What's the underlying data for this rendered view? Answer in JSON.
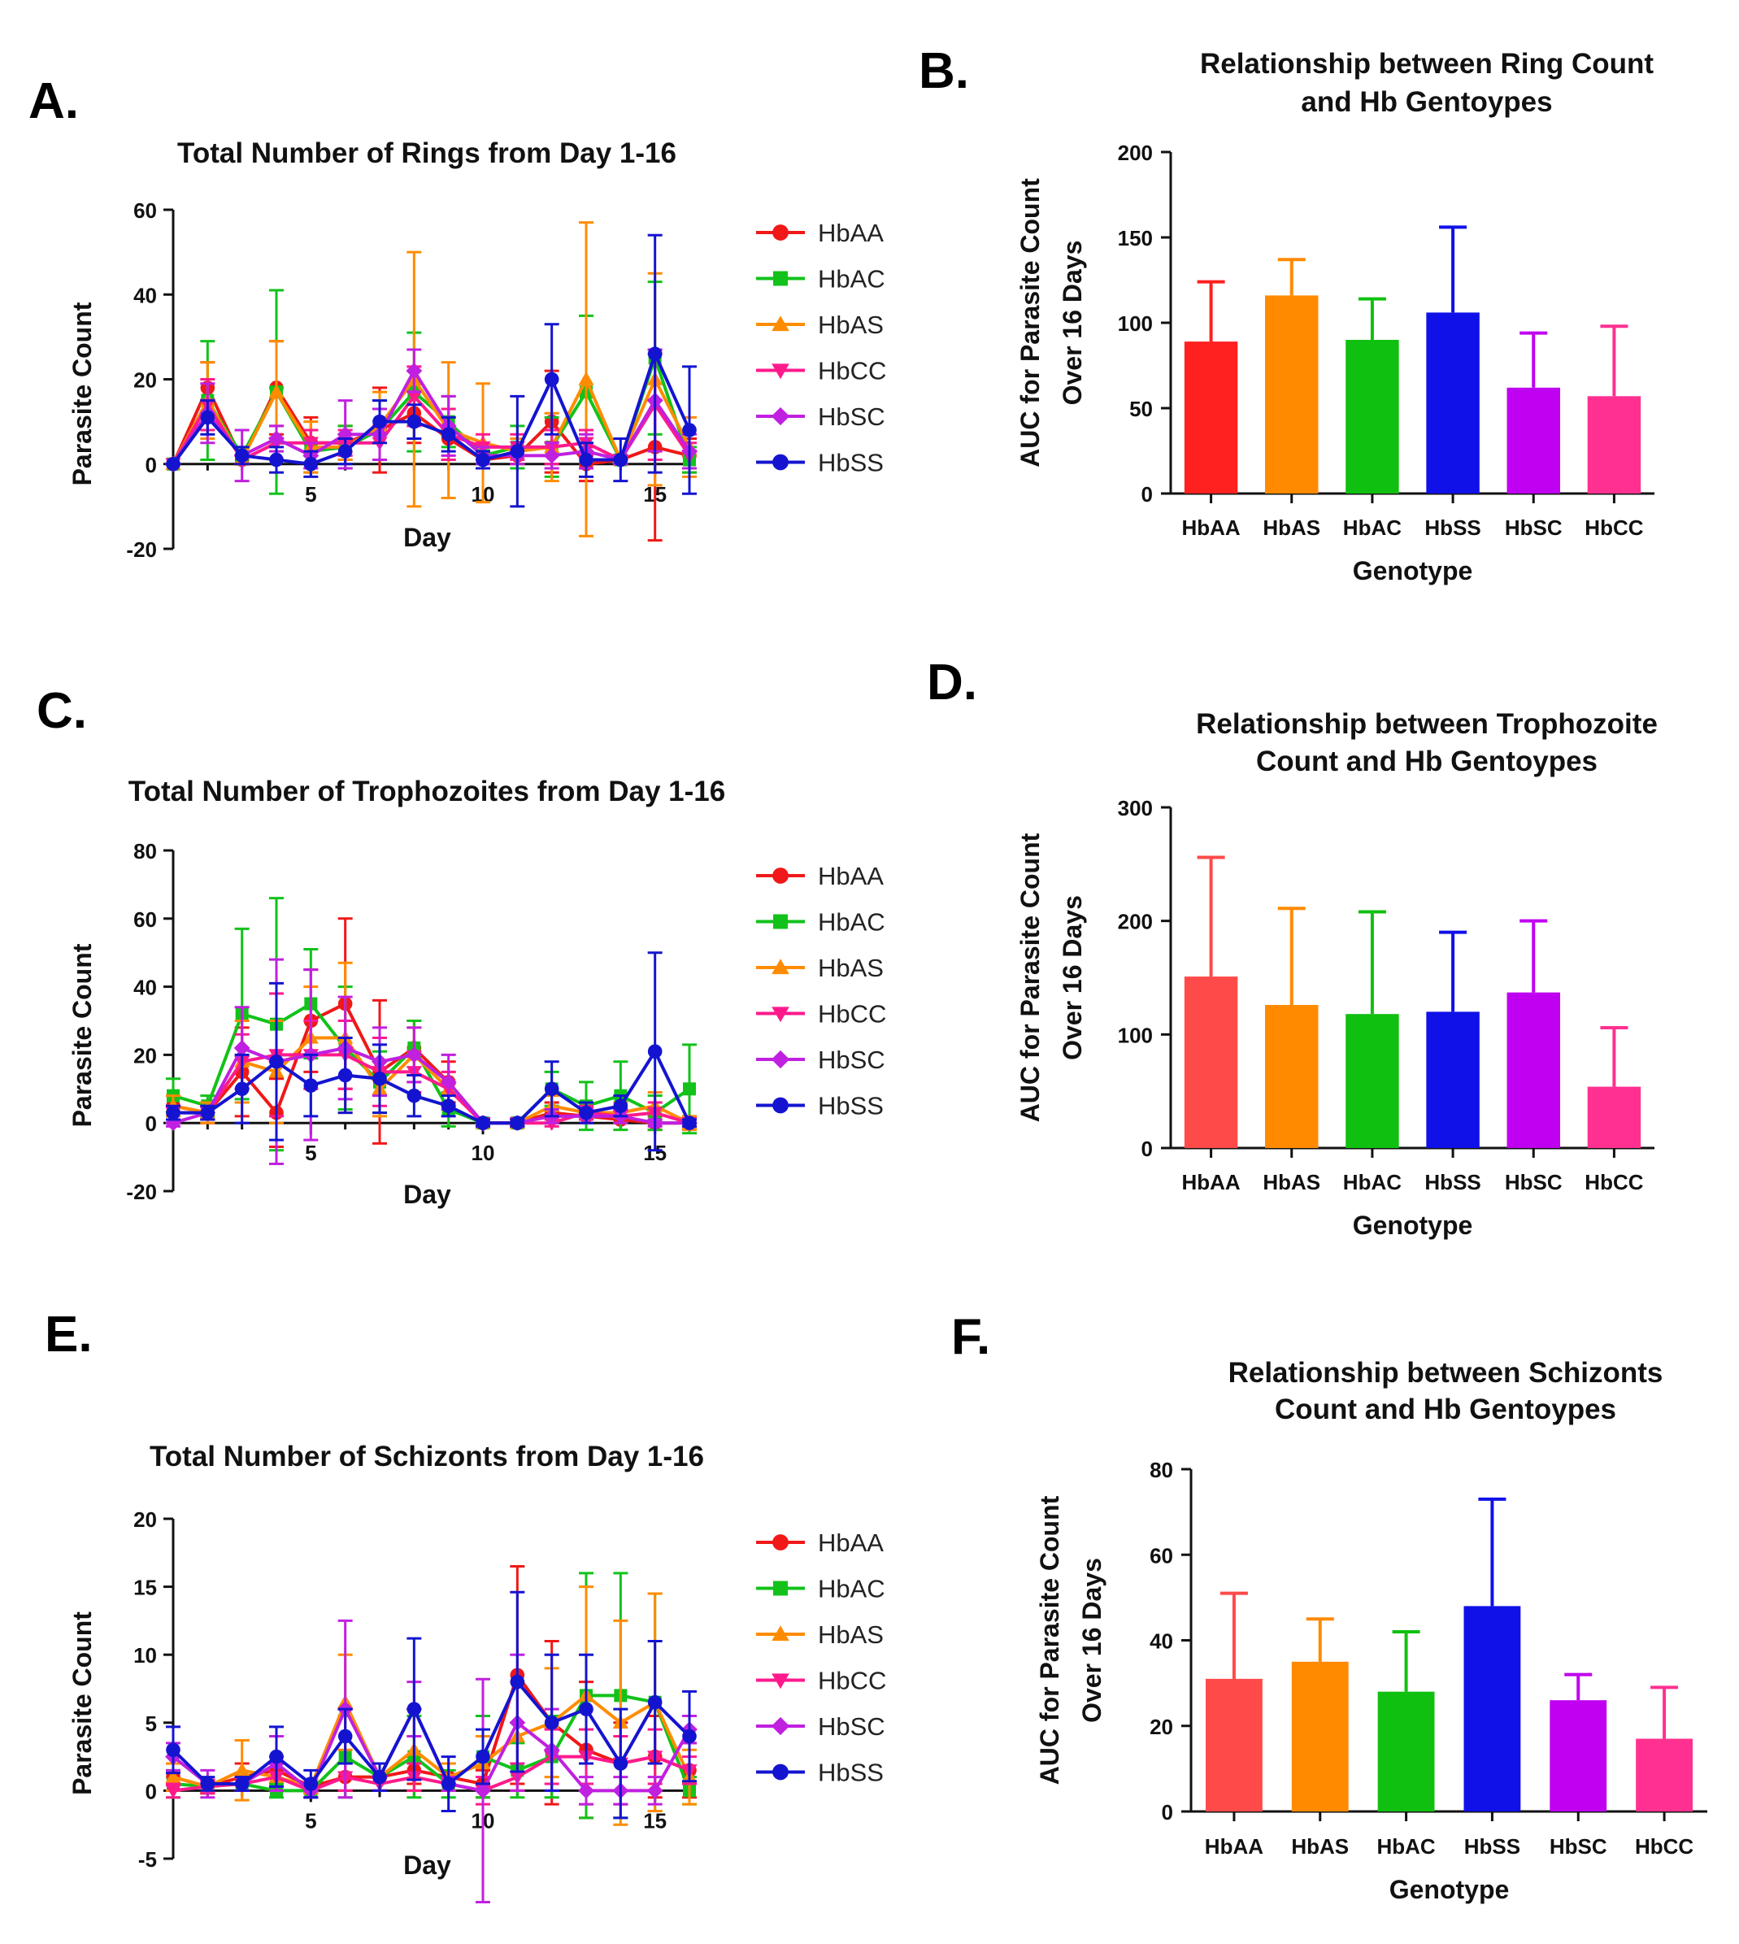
{
  "line_days": [
    1,
    2,
    3,
    4,
    5,
    6,
    7,
    8,
    9,
    10,
    11,
    12,
    13,
    14,
    15,
    16
  ],
  "bar_categories": [
    "HbAA",
    "HbAS",
    "HbAC",
    "HbSS",
    "HbSC",
    "HbCC"
  ],
  "colors": {
    "HbAA": "#f01818",
    "HbAC": "#12c21a",
    "HbAS": "#ff8c00",
    "HbCC": "#ff1a8c",
    "HbSC": "#c020e0",
    "HbSS": "#1414d0",
    "bar": {
      "HbAA": "#ff2020",
      "HbAS": "#ff8a00",
      "HbAC": "#10c010",
      "HbSS": "#1010e8",
      "HbSC": "#c000f0",
      "HbCC": "#ff3090"
    },
    "bar_light": {
      "HbAA": "#ff4a4a",
      "HbAS": "#ff8a00",
      "HbAC": "#10c010",
      "HbSS": "#1010e8",
      "HbSC": "#c000f0",
      "HbCC": "#ff3090"
    }
  },
  "chart_data": [
    {
      "panel": "A.",
      "type": "line",
      "title": "Total Number of Rings from  Day 1-16",
      "xlabel": "Day",
      "ylabel": "Parasite Count",
      "xticks": [
        5,
        10,
        15
      ],
      "yticks": [
        -20,
        0,
        20,
        40,
        60
      ],
      "xlim": [
        1,
        16
      ],
      "ylim": [
        -20,
        60
      ],
      "series": [
        {
          "name": "HbAA",
          "values": [
            0,
            18,
            1,
            18,
            5,
            5,
            8,
            12,
            6,
            1,
            2,
            10,
            0,
            1,
            4,
            2
          ],
          "errors": [
            0,
            6,
            1,
            11,
            6,
            4,
            10,
            7,
            5,
            2,
            2,
            12,
            4,
            1,
            22,
            4
          ]
        },
        {
          "name": "HbAC",
          "values": [
            0,
            15,
            2,
            17,
            3,
            4,
            8,
            17,
            10,
            2,
            4,
            4,
            17,
            1,
            25,
            1
          ],
          "errors": [
            0,
            14,
            2,
            24,
            5,
            5,
            7,
            14,
            6,
            2,
            5,
            7,
            18,
            1,
            18,
            3
          ]
        },
        {
          "name": "HbAS",
          "values": [
            0,
            15,
            1,
            17,
            4,
            4,
            9,
            20,
            8,
            5,
            3,
            4,
            20,
            1,
            20,
            4
          ],
          "errors": [
            0,
            9,
            1,
            12,
            6,
            3,
            8,
            30,
            16,
            14,
            3,
            8,
            37,
            1,
            25,
            7
          ]
        },
        {
          "name": "HbCC",
          "values": [
            0,
            14,
            1,
            5,
            5,
            5,
            5,
            16,
            7,
            4,
            4,
            4,
            5,
            1,
            14,
            2
          ],
          "errors": [
            0,
            6,
            1,
            4,
            3,
            3,
            4,
            7,
            6,
            3,
            3,
            4,
            3,
            1,
            13,
            3
          ]
        },
        {
          "name": "HbSC",
          "values": [
            0,
            12,
            2,
            6,
            2,
            7,
            7,
            22,
            9,
            2,
            2,
            2,
            3,
            1,
            15,
            3
          ],
          "errors": [
            0,
            7,
            6,
            3,
            3,
            8,
            6,
            5,
            7,
            2,
            2,
            3,
            4,
            1,
            12,
            4
          ]
        },
        {
          "name": "HbSS",
          "values": [
            0,
            11,
            2,
            1,
            0,
            3,
            10,
            10,
            7,
            1,
            3,
            20,
            1,
            1,
            26,
            8
          ],
          "errors": [
            0,
            4,
            2,
            3,
            3,
            3,
            5,
            4,
            4,
            2,
            13,
            13,
            4,
            5,
            28,
            15
          ]
        }
      ]
    },
    {
      "panel": "B.",
      "type": "bar",
      "title": "Relationship between Ring Count and Hb  Gentoypes",
      "title_lines": [
        "Relationship between Ring Count",
        "and Hb  Gentoypes"
      ],
      "xlabel": "Genotype",
      "ylabel_lines": [
        "AUC for Parasite Count",
        "Over 16 Days"
      ],
      "categories": [
        "HbAA",
        "HbAS",
        "HbAC",
        "HbSS",
        "HbSC",
        "HbCC"
      ],
      "values": [
        89,
        116,
        90,
        106,
        62,
        57
      ],
      "errors": [
        35,
        21,
        24,
        50,
        32,
        41
      ],
      "yticks": [
        0,
        50,
        100,
        150,
        200
      ],
      "ylim": [
        0,
        200
      ]
    },
    {
      "panel": "C.",
      "type": "line",
      "title": "Total Number of Trophozoites from  Day 1-16",
      "xlabel": "Day",
      "ylabel": "Parasite Count",
      "xticks": [
        5,
        10,
        15
      ],
      "yticks": [
        -20,
        0,
        20,
        40,
        60,
        80
      ],
      "xlim": [
        1,
        16
      ],
      "ylim": [
        -20,
        80
      ],
      "series": [
        {
          "name": "HbAA",
          "values": [
            5,
            3,
            15,
            3,
            30,
            35,
            15,
            22,
            12,
            0,
            0,
            3,
            2,
            1,
            0,
            0
          ],
          "errors": [
            3,
            3,
            13,
            10,
            15,
            25,
            21,
            8,
            6,
            1,
            1,
            3,
            2,
            1,
            2,
            1
          ]
        },
        {
          "name": "HbAC",
          "values": [
            8,
            5,
            32,
            29,
            35,
            22,
            12,
            22,
            4,
            0,
            0,
            10,
            5,
            8,
            3,
            10
          ],
          "errors": [
            5,
            3,
            25,
            37,
            16,
            18,
            9,
            8,
            5,
            1,
            1,
            5,
            7,
            10,
            5,
            13
          ]
        },
        {
          "name": "HbAS",
          "values": [
            5,
            3,
            18,
            15,
            25,
            25,
            10,
            20,
            10,
            0,
            0,
            5,
            3,
            3,
            5,
            0
          ],
          "errors": [
            3,
            3,
            12,
            15,
            15,
            22,
            8,
            8,
            5,
            1,
            1,
            3,
            3,
            3,
            4,
            2
          ]
        },
        {
          "name": "HbCC",
          "values": [
            3,
            3,
            18,
            20,
            20,
            20,
            15,
            15,
            10,
            0,
            0,
            0,
            3,
            2,
            3,
            0
          ],
          "errors": [
            2,
            2,
            8,
            18,
            10,
            10,
            10,
            6,
            5,
            1,
            1,
            1,
            2,
            2,
            3,
            1
          ]
        },
        {
          "name": "HbSC",
          "values": [
            0,
            3,
            22,
            18,
            20,
            22,
            18,
            20,
            12,
            0,
            0,
            2,
            2,
            2,
            0,
            0
          ],
          "errors": [
            1,
            2,
            12,
            30,
            25,
            15,
            10,
            8,
            8,
            1,
            1,
            2,
            2,
            2,
            1,
            1
          ]
        },
        {
          "name": "HbSS",
          "values": [
            3,
            3,
            10,
            18,
            11,
            14,
            13,
            8,
            5,
            0,
            0,
            10,
            3,
            5,
            21,
            0
          ],
          "errors": [
            2,
            2,
            10,
            23,
            9,
            11,
            10,
            6,
            3,
            1,
            1,
            8,
            3,
            3,
            29,
            1
          ]
        }
      ]
    },
    {
      "panel": "D.",
      "type": "bar",
      "title": "Relationship between Trophozoite Count and Hb  Gentoypes",
      "title_lines": [
        "Relationship between Trophozoite",
        "Count and Hb  Gentoypes"
      ],
      "xlabel": "Genotype",
      "ylabel_lines": [
        "AUC for Parasite Count",
        "Over 16 Days"
      ],
      "categories": [
        "HbAA",
        "HbAS",
        "HbAC",
        "HbSS",
        "HbSC",
        "HbCC"
      ],
      "values": [
        151,
        126,
        118,
        120,
        137,
        54
      ],
      "errors": [
        105,
        85,
        90,
        70,
        63,
        52
      ],
      "yticks": [
        0,
        100,
        200,
        300
      ],
      "ylim": [
        0,
        300
      ]
    },
    {
      "panel": "E.",
      "type": "line",
      "title": "Total Number of Schizonts from  Day 1-16",
      "xlabel": "Day",
      "ylabel": "Parasite Count",
      "xticks": [
        5,
        10,
        15
      ],
      "yticks": [
        -5,
        0,
        5,
        10,
        15,
        20
      ],
      "xlim": [
        1,
        16
      ],
      "ylim": [
        -5,
        20
      ],
      "series": [
        {
          "name": "HbAA",
          "values": [
            1,
            0.3,
            1,
            1.5,
            0.3,
            1,
            1,
            1.5,
            1,
            0.5,
            8.5,
            5,
            3,
            2,
            2.5,
            1.5
          ],
          "errors": [
            1,
            0.5,
            1,
            1,
            0.5,
            1,
            1,
            1,
            1,
            1,
            8,
            6,
            5,
            3,
            3,
            2
          ]
        },
        {
          "name": "HbAC",
          "values": [
            0.5,
            0.3,
            0.5,
            0,
            0,
            2.5,
            1,
            2.5,
            0.5,
            2.5,
            1.5,
            2.5,
            7,
            7,
            6.5,
            0
          ],
          "errors": [
            1,
            0.5,
            0.5,
            0.5,
            0.5,
            3,
            1,
            3,
            1,
            3,
            2,
            3,
            9,
            9,
            8,
            1
          ]
        },
        {
          "name": "HbAS",
          "values": [
            1,
            0.3,
            1.5,
            1,
            0.3,
            6.5,
            1,
            3,
            1,
            2,
            4,
            5,
            7,
            5,
            6.5,
            1
          ],
          "errors": [
            1,
            0.5,
            2.2,
            1,
            0.5,
            3.5,
            1,
            3,
            1,
            2,
            4,
            4,
            8,
            7.5,
            8,
            2
          ]
        },
        {
          "name": "HbCC",
          "values": [
            0,
            0.3,
            0.5,
            1,
            0,
            1,
            0.5,
            1,
            0.5,
            0,
            1,
            2.5,
            2.5,
            2,
            2.5,
            1.5
          ],
          "errors": [
            0.5,
            0.5,
            0.5,
            1,
            0.5,
            1,
            0.5,
            1,
            0.5,
            1,
            1,
            2,
            2,
            2,
            2,
            1
          ]
        },
        {
          "name": "HbSC",
          "values": [
            2.5,
            0.5,
            0.5,
            2,
            0,
            6,
            1,
            6,
            0.5,
            0,
            5,
            3,
            0,
            0,
            0,
            4.5
          ],
          "errors": [
            1,
            1,
            0.5,
            2,
            0.5,
            6.5,
            1,
            2,
            0.5,
            8.2,
            5,
            3,
            1,
            1,
            1,
            1
          ]
        },
        {
          "name": "HbSS",
          "values": [
            3,
            0.5,
            0.5,
            2.5,
            0.5,
            4,
            1,
            6,
            0.5,
            2.5,
            8,
            5,
            6,
            2,
            6.5,
            4
          ],
          "errors": [
            1.7,
            0.5,
            0.5,
            2.2,
            1,
            2,
            1,
            5.2,
            2,
            2,
            6.6,
            5,
            4,
            4,
            4.5,
            3.3
          ]
        }
      ]
    },
    {
      "panel": "F.",
      "type": "bar",
      "title": "Relationship between Schizonts Count and Hb  Gentoypes",
      "title_lines": [
        "Relationship between Schizonts",
        "Count and Hb  Gentoypes"
      ],
      "xlabel": "Genotype",
      "ylabel_lines": [
        "AUC for Parasite Count",
        "Over 16 Days"
      ],
      "categories": [
        "HbAA",
        "HbAS",
        "HbAC",
        "HbSS",
        "HbSC",
        "HbCC"
      ],
      "values": [
        31,
        35,
        28,
        48,
        26,
        17
      ],
      "errors": [
        20,
        10,
        14,
        25,
        6,
        12
      ],
      "yticks": [
        0,
        20,
        40,
        60,
        80
      ],
      "ylim": [
        0,
        80
      ]
    }
  ]
}
